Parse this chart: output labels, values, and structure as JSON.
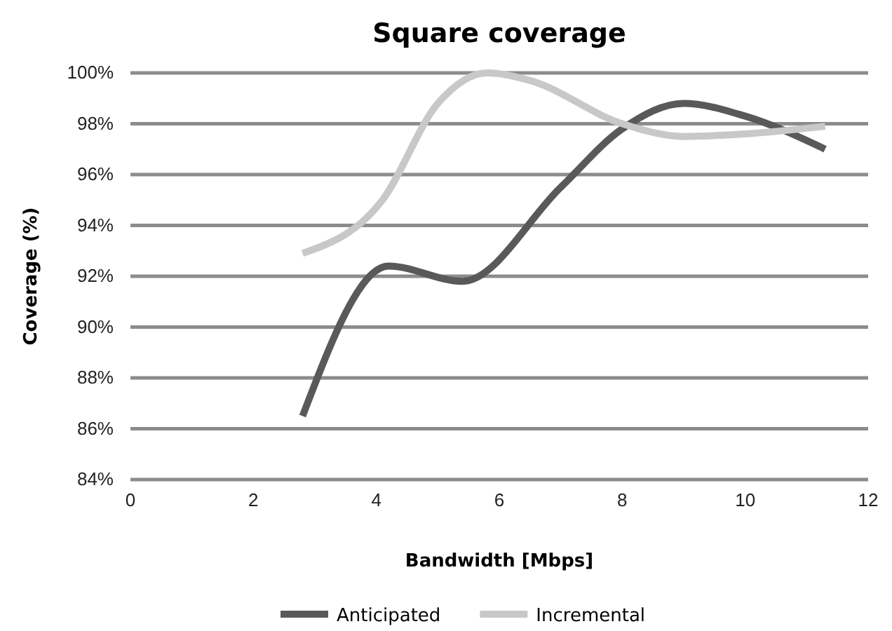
{
  "chart_data": {
    "type": "line",
    "title": "Square coverage",
    "xlabel": "Bandwidth [Mbps]",
    "ylabel": "Coverage (%)",
    "xlim": [
      0,
      12
    ],
    "xticks": [
      0,
      2,
      4,
      6,
      8,
      10,
      12
    ],
    "ylim": [
      84,
      100
    ],
    "yticks": [
      {
        "value": 84,
        "label": "84%"
      },
      {
        "value": 86,
        "label": "86%"
      },
      {
        "value": 88,
        "label": "88%"
      },
      {
        "value": 90,
        "label": "90%"
      },
      {
        "value": 92,
        "label": "92%"
      },
      {
        "value": 94,
        "label": "94%"
      },
      {
        "value": 96,
        "label": "96%"
      },
      {
        "value": 98,
        "label": "98%"
      },
      {
        "value": 100,
        "label": "100%"
      }
    ],
    "grid": "y",
    "legend": "bottom",
    "marker": "none",
    "line_style": "solid",
    "series": [
      {
        "name": "Anticipated",
        "color": "#595959",
        "x": [
          2.8,
          4.2,
          5.4,
          7,
          8,
          9,
          10,
          11.3
        ],
        "values": [
          86.5,
          92.4,
          91.8,
          95.5,
          97.8,
          98.8,
          98.3,
          97
        ]
      },
      {
        "name": "Incremental",
        "color": "#c8c8c8",
        "x": [
          2.8,
          4.1,
          5,
          5.8,
          6.5,
          8,
          9,
          10,
          11.3
        ],
        "values": [
          92.9,
          95,
          98.8,
          100,
          99.7,
          98,
          97.5,
          97.6,
          97.9
        ]
      }
    ]
  }
}
